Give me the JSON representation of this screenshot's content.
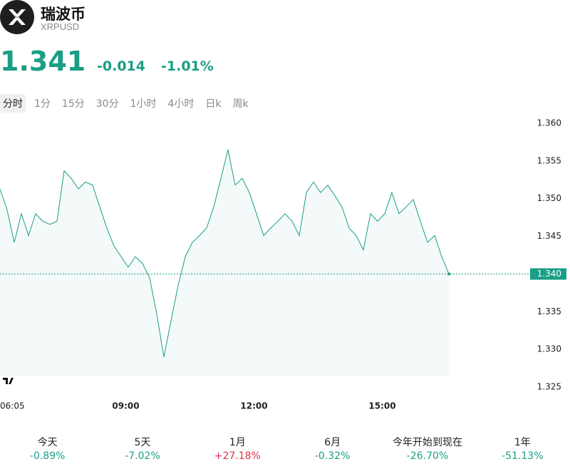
{
  "header": {
    "name": "瑞波币",
    "symbol": "XRPUSD",
    "price": "1.341",
    "change": "-0.014",
    "change_pct": "-1.01%"
  },
  "tabs": [
    "分时",
    "1分",
    "15分",
    "30分",
    "1小时",
    "4小时",
    "日k",
    "周k"
  ],
  "active_tab": 0,
  "chart_data": {
    "type": "area-line",
    "color": "#1a9e85",
    "x": [
      "06:05",
      "06:15",
      "06:25",
      "06:35",
      "06:45",
      "06:55",
      "07:05",
      "07:15",
      "07:25",
      "07:35",
      "07:45",
      "07:55",
      "08:05",
      "08:15",
      "08:25",
      "08:35",
      "08:45",
      "08:55",
      "09:05",
      "09:15",
      "09:25",
      "09:35",
      "09:45",
      "09:55",
      "10:05",
      "10:15",
      "10:25",
      "10:35",
      "10:45",
      "10:55",
      "11:05",
      "11:15",
      "11:25",
      "11:35",
      "11:45",
      "11:55",
      "12:05",
      "12:15",
      "12:25",
      "12:35",
      "12:45",
      "12:55",
      "13:05",
      "13:15",
      "13:25",
      "13:35",
      "13:45",
      "13:55",
      "14:05",
      "14:15",
      "14:25",
      "14:35",
      "14:45",
      "14:55",
      "15:05",
      "15:15",
      "15:25",
      "15:35",
      "15:45",
      "15:55",
      "16:05",
      "16:15",
      "16:25",
      "16:35"
    ],
    "values": [
      1.3513,
      1.3485,
      1.3442,
      1.348,
      1.3451,
      1.348,
      1.347,
      1.3466,
      1.347,
      1.3537,
      1.3527,
      1.3513,
      1.3522,
      1.3518,
      1.3489,
      1.3461,
      1.3437,
      1.3423,
      1.3409,
      1.3423,
      1.3414,
      1.3395,
      1.3347,
      1.329,
      1.3338,
      1.3385,
      1.3423,
      1.3442,
      1.3451,
      1.3461,
      1.3489,
      1.3527,
      1.3565,
      1.3518,
      1.3527,
      1.3508,
      1.348,
      1.3451,
      1.3461,
      1.347,
      1.348,
      1.347,
      1.3451,
      1.3508,
      1.3522,
      1.3508,
      1.3518,
      1.3504,
      1.3489,
      1.3461,
      1.3451,
      1.3432,
      1.348,
      1.347,
      1.348,
      1.3508,
      1.348,
      1.3489,
      1.3499,
      1.347,
      1.3442,
      1.3451,
      1.3423,
      1.34
    ],
    "xlim": [
      "06:05",
      "18:25"
    ],
    "xticks": [
      "06:05",
      "09:00",
      "12:00",
      "15:00"
    ],
    "ylim": [
      1.324,
      1.361
    ],
    "yticks": [
      {
        "value": 1.36,
        "label": "1.360"
      },
      1.355,
      {
        "value": 1.35,
        "label": "1.350"
      },
      1.345,
      {
        "value": 1.34,
        "label": "1.340"
      },
      1.335,
      {
        "value": 1.33,
        "label": "1.330"
      },
      1.325
    ],
    "price_line": {
      "value": 1.34,
      "label": "1.340"
    }
  },
  "performance": [
    {
      "label": "今天",
      "value": "-0.89%"
    },
    {
      "label": "5天",
      "value": "-7.02%"
    },
    {
      "label": "1月",
      "value": "+27.18%"
    },
    {
      "label": "6月",
      "value": "-0.32%"
    },
    {
      "label": "今年开始到现在",
      "value": "-26.70%"
    },
    {
      "label": "1年",
      "value": "-51.13%"
    }
  ]
}
